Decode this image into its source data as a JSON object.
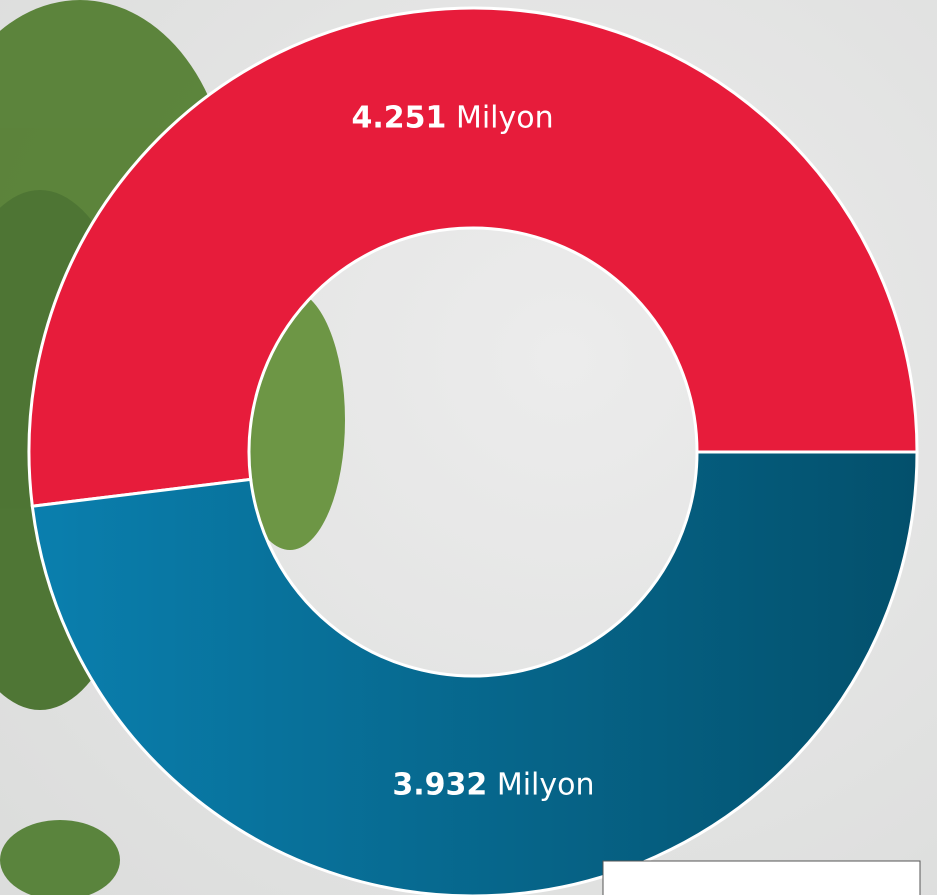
{
  "chart_data": {
    "type": "donut",
    "categories": [
      null,
      null
    ],
    "values": [
      4251,
      3932
    ],
    "value_labels": [
      "4.251",
      "3.932"
    ],
    "unit": "Milyon",
    "colors": [
      "#e71c3b",
      "#0a6a90"
    ]
  }
}
